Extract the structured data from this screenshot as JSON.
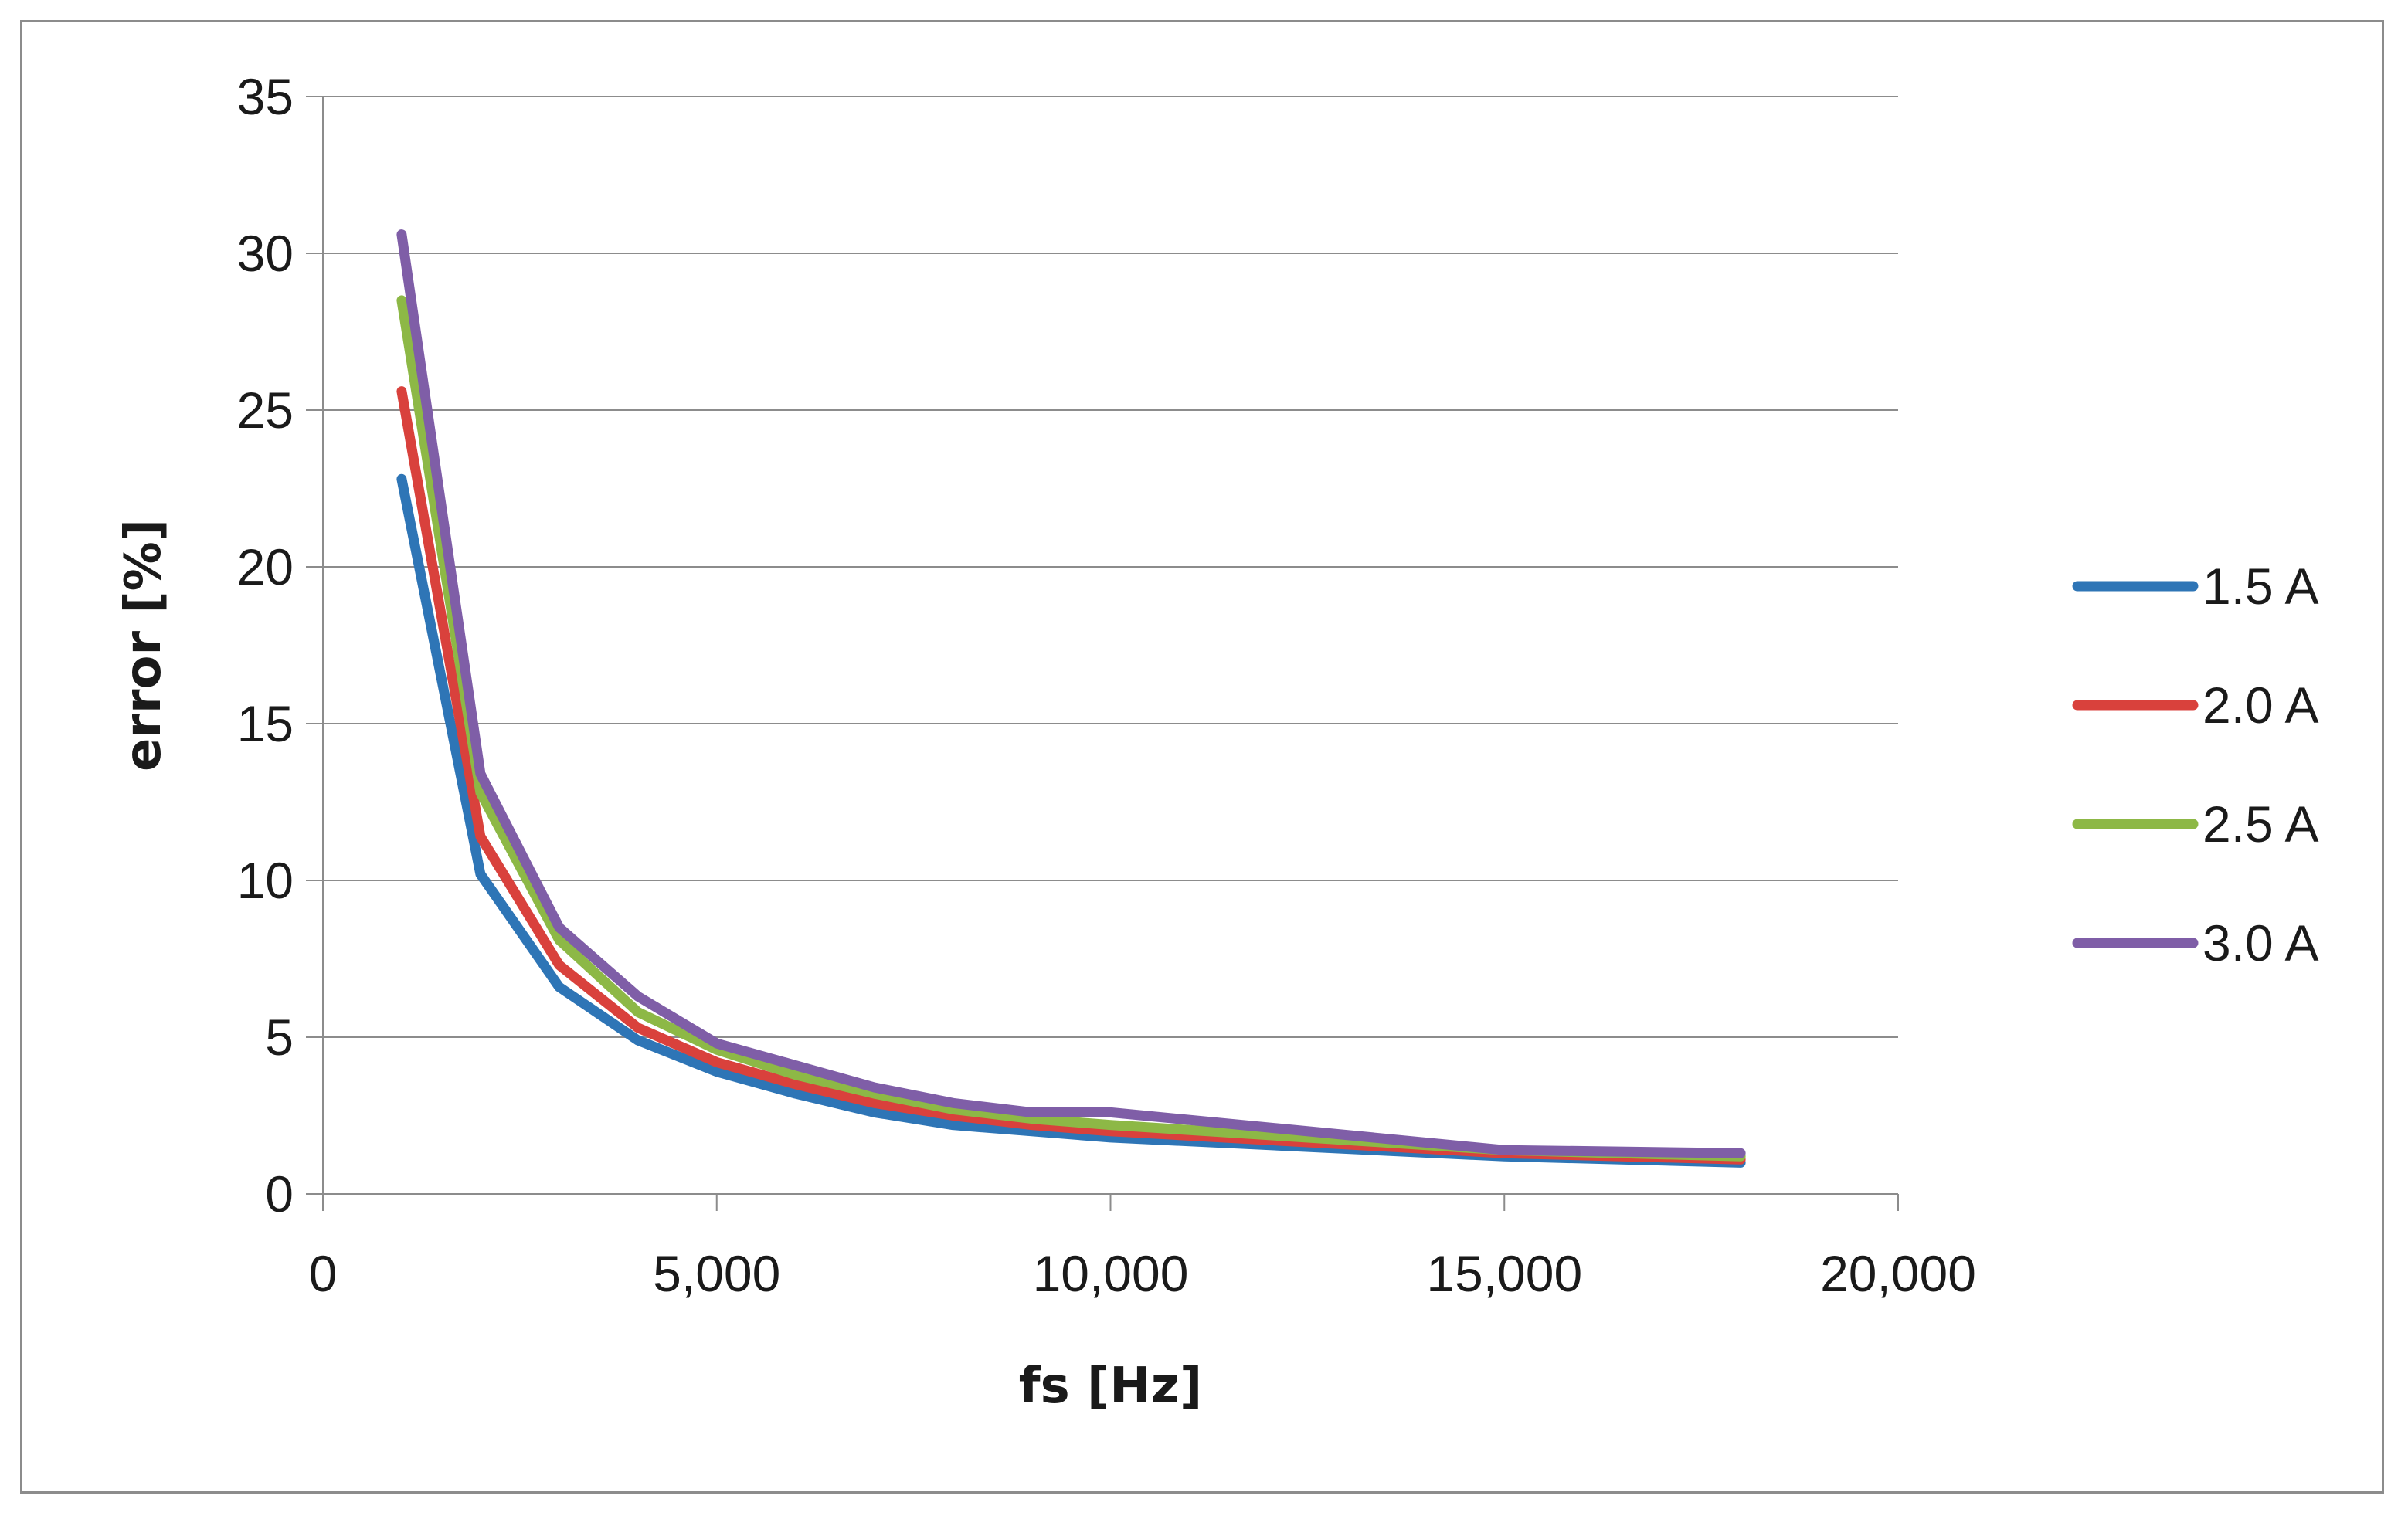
{
  "chart_data": {
    "type": "line",
    "title": "",
    "xlabel": "fs [Hz]",
    "ylabel": "error [%]",
    "xlim": [
      0,
      20000
    ],
    "ylim": [
      0,
      35
    ],
    "xticks": [
      0,
      5000,
      10000,
      15000,
      20000
    ],
    "xtick_labels": [
      "0",
      "5,000",
      "10,000",
      "15,000",
      "20,000"
    ],
    "yticks": [
      0,
      5,
      10,
      15,
      20,
      25,
      30,
      35
    ],
    "ytick_labels": [
      "0",
      "5",
      "10",
      "15",
      "20",
      "25",
      "30",
      "35"
    ],
    "grid": "horizontal",
    "legend_position": "right",
    "x": [
      1000,
      2000,
      3000,
      4000,
      5000,
      6000,
      7000,
      8000,
      9000,
      10000,
      15000,
      18000
    ],
    "series": [
      {
        "name": "1.5 A",
        "color": "#2e75b6",
        "values": [
          22.8,
          10.2,
          6.6,
          4.9,
          3.9,
          3.2,
          2.6,
          2.2,
          2.0,
          1.8,
          1.2,
          1.0
        ]
      },
      {
        "name": "2.0 A",
        "color": "#d9413c",
        "values": [
          25.6,
          11.4,
          7.3,
          5.3,
          4.2,
          3.5,
          2.9,
          2.5,
          2.2,
          2.0,
          1.3,
          1.1
        ]
      },
      {
        "name": "2.5 A",
        "color": "#8db846",
        "values": [
          28.5,
          12.8,
          8.1,
          5.8,
          4.6,
          3.8,
          3.2,
          2.7,
          2.4,
          2.2,
          1.4,
          1.2
        ]
      },
      {
        "name": "3.0 A",
        "color": "#7f5ea7",
        "values": [
          30.6,
          13.4,
          8.5,
          6.3,
          4.8,
          4.1,
          3.4,
          2.9,
          2.6,
          2.6,
          1.4,
          1.3
        ]
      }
    ]
  }
}
